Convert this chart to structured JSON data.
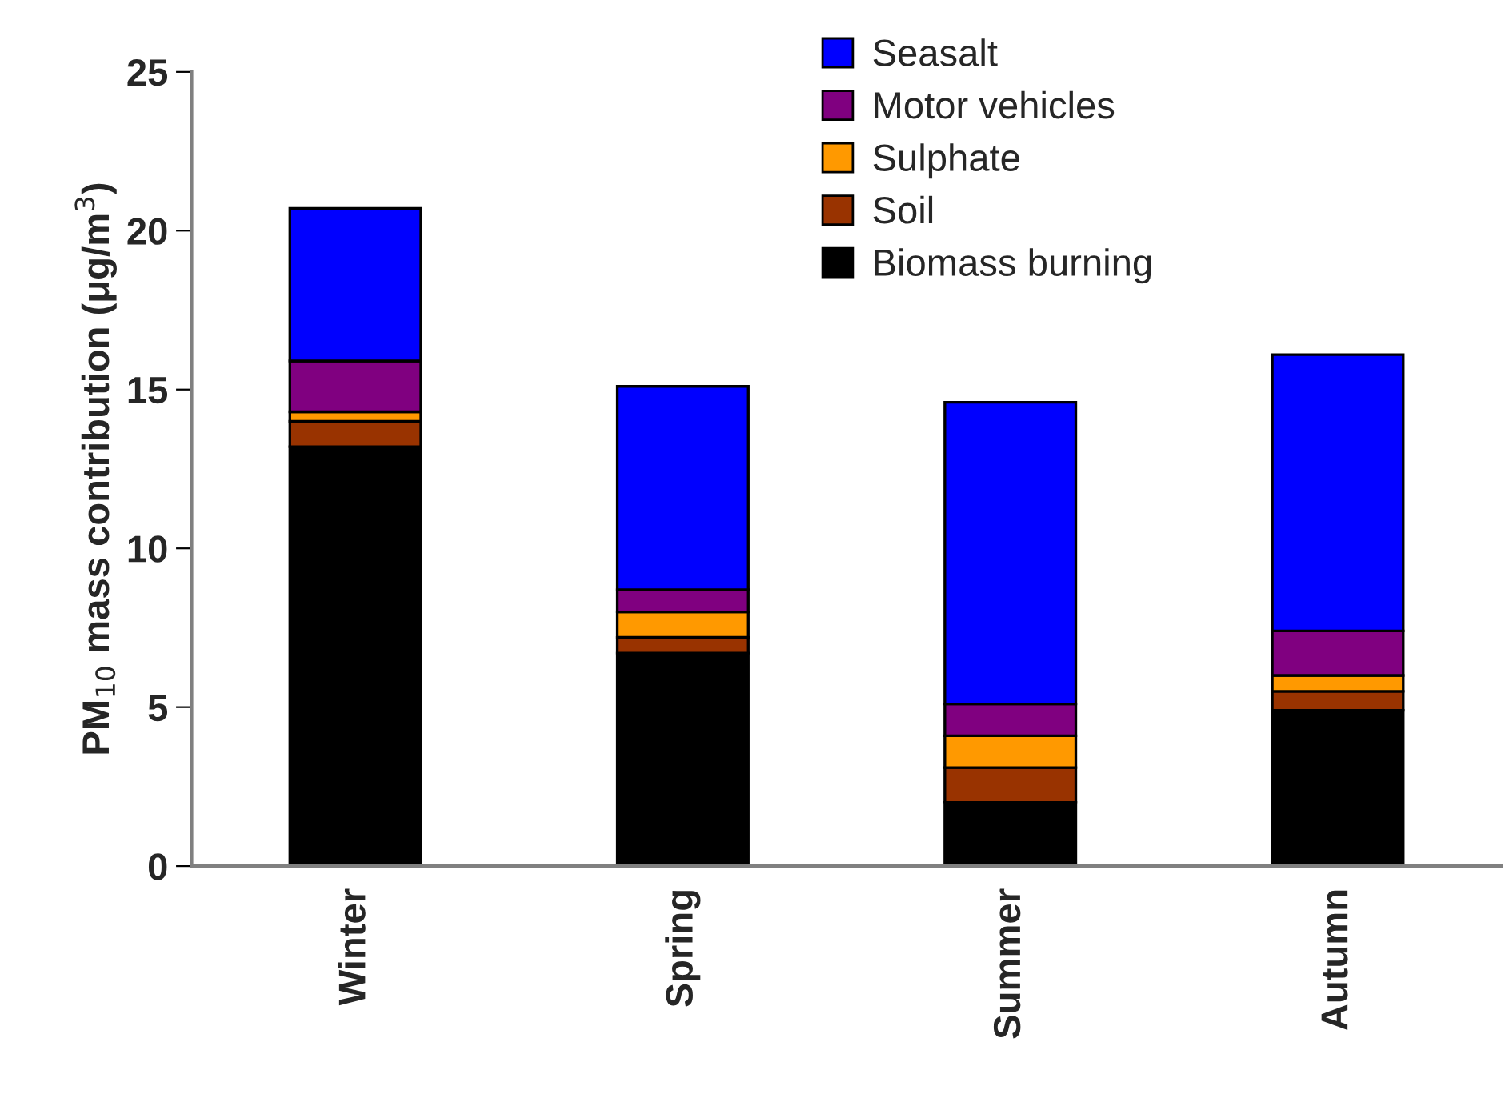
{
  "chart_data": {
    "type": "bar",
    "stacked": true,
    "categories": [
      "Winter",
      "Spring",
      "Summer",
      "Autumn"
    ],
    "ylabel": "PM$_{10}$ mass contribution (μg/m$^{3}$)",
    "ylim": [
      0,
      25
    ],
    "yticks": [
      0,
      5,
      10,
      15,
      20,
      25
    ],
    "grid": false,
    "legend": "top right",
    "series": [
      {
        "name": "Biomass burning",
        "color": "#000000",
        "values": [
          13.2,
          6.7,
          2.0,
          4.9
        ]
      },
      {
        "name": "Soil",
        "color": "#993300",
        "values": [
          0.8,
          0.5,
          1.1,
          0.6
        ]
      },
      {
        "name": "Sulphate",
        "color": "#ff9900",
        "values": [
          0.3,
          0.8,
          1.0,
          0.5
        ]
      },
      {
        "name": "Motor vehicles",
        "color": "#800080",
        "values": [
          1.6,
          0.7,
          1.0,
          1.4
        ]
      },
      {
        "name": "Seasalt",
        "color": "#0000ff",
        "values": [
          4.8,
          6.4,
          9.5,
          8.7
        ]
      }
    ]
  }
}
